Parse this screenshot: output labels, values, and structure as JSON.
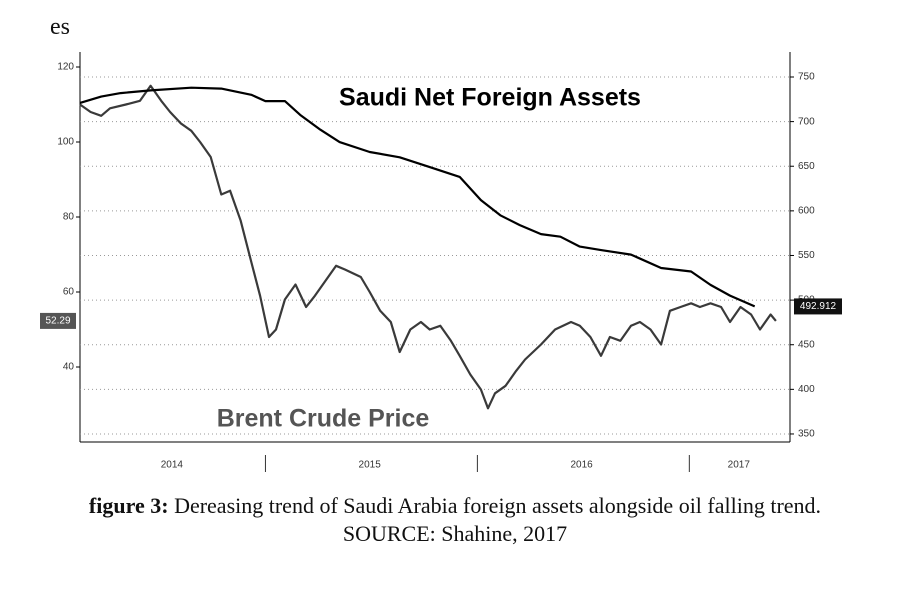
{
  "top_text": "es",
  "chart_data": {
    "type": "line",
    "annotations": [
      "Saudi Net Foreign Assets",
      "Brent Crude Price"
    ],
    "xlim": [
      1.5,
      41.7
    ],
    "xticks": [
      {
        "value": 6.7,
        "label": "2014"
      },
      {
        "value": 17.9,
        "label": "2015"
      },
      {
        "value": 29.9,
        "label": "2016"
      },
      {
        "value": 38.8,
        "label": "2017"
      }
    ],
    "year_separators": [
      12,
      24,
      36
    ],
    "ylim": [
      20,
      124
    ],
    "yticks": [
      40,
      60,
      80,
      100,
      120
    ],
    "y2lim": [
      341,
      778
    ],
    "y2ticks": [
      350,
      400,
      450,
      500,
      550,
      600,
      650,
      700,
      750
    ],
    "grid": true,
    "series": [
      {
        "name": "Brent Crude Price",
        "color": "#3a3a3a",
        "axis": "y",
        "last_label": "52.29",
        "x": [
          1.5,
          2.1,
          2.7,
          3.2,
          4.1,
          4.9,
          5.5,
          6.1,
          6.6,
          7.2,
          7.8,
          8.3,
          8.9,
          9.5,
          10.0,
          10.6,
          11.2,
          11.7,
          12.2,
          12.6,
          13.1,
          13.7,
          14.3,
          14.8,
          15.4,
          16.0,
          16.5,
          17.4,
          17.9,
          18.5,
          19.1,
          19.6,
          20.2,
          20.8,
          21.3,
          21.9,
          22.5,
          23.0,
          23.6,
          24.2,
          24.6,
          25.0,
          25.6,
          26.2,
          26.7,
          27.6,
          28.4,
          29.3,
          29.8,
          30.4,
          31.0,
          31.5,
          32.1,
          32.7,
          33.2,
          33.8,
          34.4,
          34.9,
          35.5,
          36.1,
          36.6,
          37.2,
          37.8,
          38.3,
          38.9,
          39.5,
          40.0,
          40.6,
          40.9
        ],
        "values": [
          110,
          108,
          107,
          109,
          110,
          111,
          115,
          111,
          108,
          105,
          103,
          100,
          96,
          86,
          87,
          79,
          68,
          59,
          48,
          50,
          58,
          62,
          56,
          59,
          63,
          67,
          66,
          64,
          60,
          55,
          52,
          44,
          50,
          52,
          50,
          51,
          47,
          43,
          38,
          34,
          29,
          33,
          35,
          39,
          42,
          46,
          50,
          52,
          51,
          48,
          43,
          48,
          47,
          51,
          52,
          50,
          46,
          55,
          56,
          57,
          56,
          57,
          56,
          52,
          56,
          54,
          50,
          54,
          52.29
        ]
      },
      {
        "name": "Saudi Net Foreign Assets",
        "color": "#000000",
        "axis": "y2",
        "last_label": "492.912",
        "x": [
          1.5,
          2.7,
          3.8,
          5.5,
          7.8,
          9.5,
          11.2,
          12.0,
          13.1,
          14.0,
          15.1,
          16.2,
          17.9,
          19.6,
          21.3,
          23.0,
          24.2,
          25.3,
          26.4,
          27.6,
          28.7,
          29.8,
          31.0,
          32.7,
          34.4,
          36.1,
          37.2,
          38.3,
          39.7
        ],
        "values": [
          721,
          728,
          732,
          735,
          738,
          737,
          730,
          723,
          723,
          707,
          691,
          677,
          666,
          660,
          649,
          638,
          612,
          595,
          584,
          574,
          571,
          560,
          556,
          551,
          536,
          532,
          517,
          505,
          492.912
        ]
      }
    ]
  },
  "caption": {
    "label": "figure 3:",
    "text": "Dereasing trend of Saudi Arabia foreign assets alongside oil falling trend. SOURCE: Shahine, 2017"
  }
}
